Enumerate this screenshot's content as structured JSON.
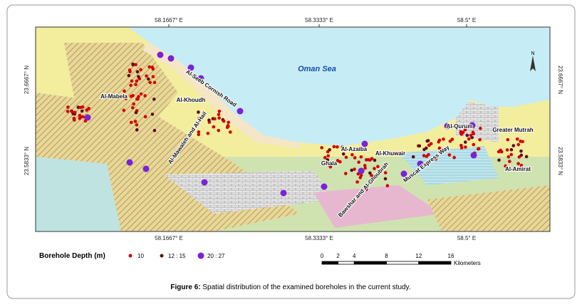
{
  "map": {
    "coordinates": {
      "longitudes": [
        "58.1667° E",
        "58.3333° E",
        "58.5° E"
      ],
      "latitudes": [
        "23.6667° N",
        "23.5833° N"
      ]
    },
    "sea_label": "Oman Sea",
    "places": [
      {
        "label": "Al-Mabela"
      },
      {
        "label": "Al-Seeb Cornish Road"
      },
      {
        "label": "Al-Khoudh"
      },
      {
        "label": "Al-Mawaleh and Al-Hail"
      },
      {
        "label": "Al-Azaiba"
      },
      {
        "label": "Ghala"
      },
      {
        "label": "Al-Khuwair"
      },
      {
        "label": "Bawshar and Al-Ghoubrah"
      },
      {
        "label": "Muscat Express Way"
      },
      {
        "label": "Al-Qurum"
      },
      {
        "label": "Greater Mutrah"
      },
      {
        "label": "Al-Amirat"
      }
    ]
  },
  "legend": {
    "title": "Borehole Depth (m)",
    "items": [
      "10",
      "12 : 15",
      "20 : 27"
    ]
  },
  "scale_bar": {
    "ticks": [
      0,
      2,
      4,
      8,
      12,
      16
    ],
    "unit": "Kilometers"
  },
  "caption": {
    "label": "Figure 6:",
    "text": "Spatial distribution of the examined boreholes in the current study."
  }
}
